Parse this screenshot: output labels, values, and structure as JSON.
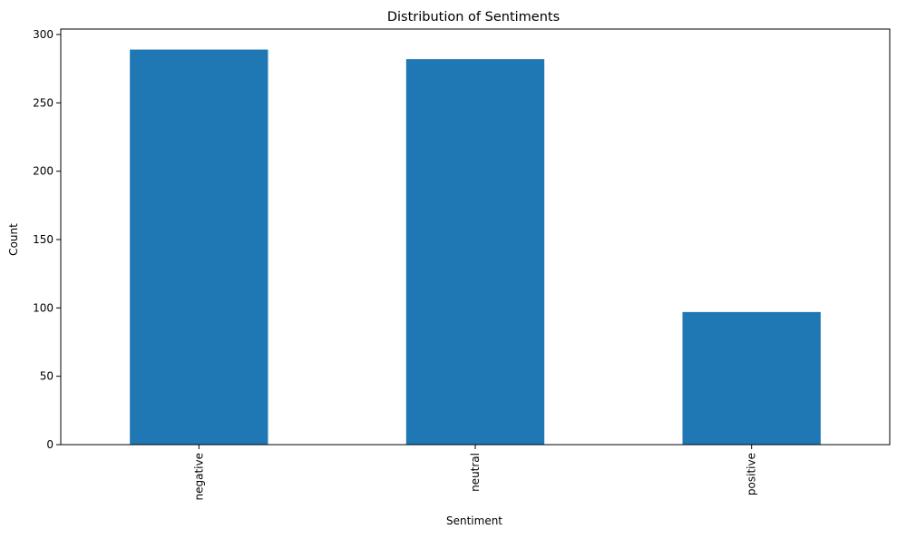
{
  "chart_data": {
    "type": "bar",
    "title": "Distribution of Sentiments",
    "xlabel": "Sentiment",
    "ylabel": "Count",
    "categories": [
      "negative",
      "neutral",
      "positive"
    ],
    "values": [
      289,
      282,
      97
    ],
    "ylim": [
      0,
      304
    ],
    "yticks": [
      0,
      50,
      100,
      150,
      200,
      250,
      300
    ],
    "grid": false,
    "legend": "none",
    "bar_color": "#1f77b4",
    "xtick_rotation": "vertical"
  }
}
